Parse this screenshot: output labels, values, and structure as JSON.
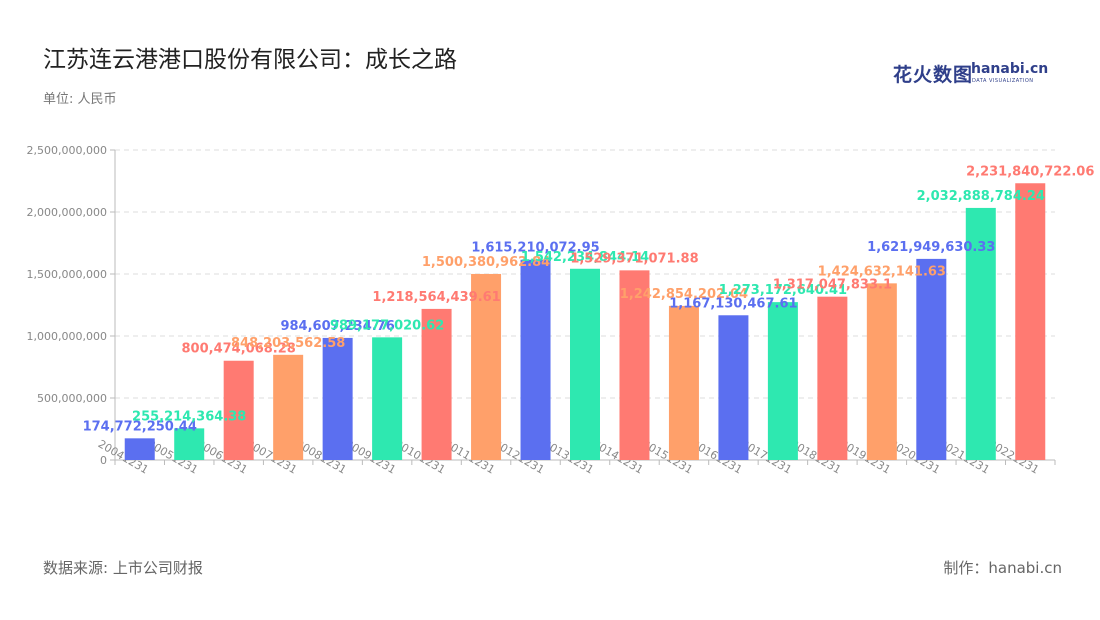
{
  "header": {
    "title": "江苏连云港港口股份有限公司：成长之路",
    "unit": "单位: 人民币"
  },
  "brand": {
    "cn": "花火数图",
    "en": "hanabi.cn",
    "sub": "DATA VISUALIZATION"
  },
  "footer": {
    "source": "数据来源: 上市公司财报",
    "maker": "制作：hanabi.cn"
  },
  "colors": {
    "palette": [
      "#5b6ff0",
      "#2ee8b0",
      "#ff7a72",
      "#ffa06a"
    ]
  },
  "chart_data": {
    "type": "bar",
    "ylim": [
      0,
      2500000000
    ],
    "yticks": [
      0,
      500000000,
      1000000000,
      1500000000,
      2000000000,
      2500000000
    ],
    "ytick_labels": [
      "0",
      "500,000,000",
      "1,000,000,000",
      "1,500,000,000",
      "2,000,000,000",
      "2,500,000,000"
    ],
    "grid": true,
    "categories": [
      "20041231",
      "20051231",
      "20061231",
      "20071231",
      "20081231",
      "20091231",
      "20101231",
      "20111231",
      "20121231",
      "20131231",
      "20141231",
      "20151231",
      "20161231",
      "20171231",
      "20181231",
      "20191231",
      "20201231",
      "20211231",
      "20221231"
    ],
    "values": [
      174772250.44,
      255214364.38,
      800474068.28,
      848203562.58,
      984607234.76,
      989177020.62,
      1218564439.61,
      1500380962.84,
      1615210072.95,
      1542234844.14,
      1529371071.88,
      1242854202.04,
      1167130467.61,
      1273172640.41,
      1317047833.1,
      1424632141.63,
      1621949630.33,
      2032888784.24,
      2231840722.06
    ],
    "labels": [
      "174,772,250.44",
      "255,214,364.38",
      "800,474,068.28",
      "848,203,562.58",
      "984,607,234.76",
      "989,177,020.62",
      "1,218,564,439.61",
      "1,500,380,962.84",
      "1,615,210,072.95",
      "1,542,234,844.14",
      "1,529,371,071.88",
      "1,242,854,202.04",
      "1,167,130,467.61",
      "1,273,172,640.41",
      "1,317,047,833.1",
      "1,424,632,141.63",
      "1,621,949,630.33",
      "2,032,888,784.24",
      "2,231,840,722.06"
    ],
    "bar_color_index": [
      0,
      1,
      2,
      3,
      0,
      1,
      2,
      3,
      0,
      1,
      2,
      3,
      0,
      1,
      2,
      3,
      0,
      1,
      2
    ]
  }
}
